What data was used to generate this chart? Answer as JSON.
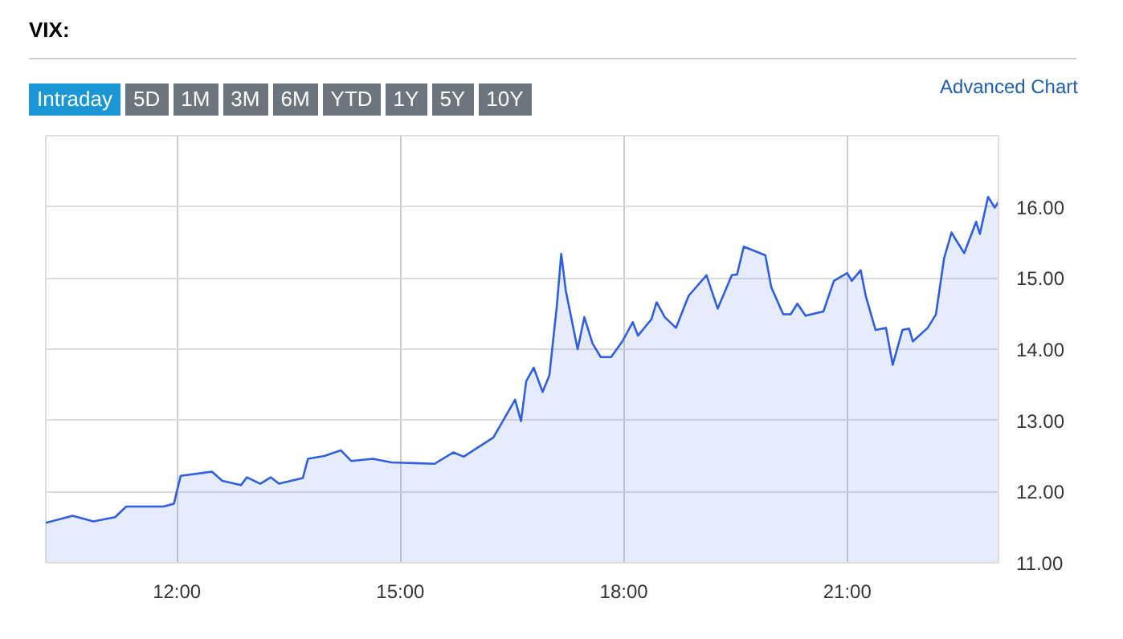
{
  "chart_data": {
    "type": "area",
    "title": "VIX:",
    "annotations": [
      "Intraday",
      "5D",
      "1M",
      "3M",
      "6M",
      "YTD",
      "1Y",
      "5Y",
      "10Y",
      "Advanced Chart"
    ],
    "series": [
      {
        "color": "#2f5fe0",
        "x": [
          10.24,
          10.6,
          10.88,
          11.17,
          11.32,
          11.82,
          11.96,
          12.05,
          12.47,
          12.61,
          12.86,
          12.94,
          13.12,
          13.26,
          13.37,
          13.69,
          13.76,
          13.98,
          14.2,
          14.34,
          14.63,
          14.88,
          15.46,
          15.71,
          15.85,
          16.25,
          16.54,
          16.62,
          16.69,
          16.79,
          16.91,
          17.0,
          17.1,
          17.16,
          17.22,
          17.38,
          17.47,
          17.58,
          17.69,
          17.83,
          17.98,
          18.12,
          18.19,
          18.37,
          18.44,
          18.55,
          18.7,
          18.87,
          19.11,
          19.26,
          19.45,
          19.52,
          19.61,
          19.78,
          19.9,
          19.98,
          20.14,
          20.24,
          20.33,
          20.44,
          20.68,
          20.82,
          21.0,
          21.06,
          21.18,
          21.25,
          21.38,
          21.52,
          21.61,
          21.74,
          21.83,
          21.88,
          22.08,
          22.19,
          22.3,
          22.4,
          22.48,
          22.57,
          22.73,
          22.78,
          22.89,
          22.98,
          23.03
        ],
        "values": [
          11.56,
          11.66,
          11.58,
          11.64,
          11.79,
          11.79,
          11.83,
          12.22,
          12.28,
          12.15,
          12.09,
          12.2,
          12.11,
          12.2,
          12.11,
          12.19,
          12.46,
          12.5,
          12.58,
          12.43,
          12.46,
          12.41,
          12.39,
          12.55,
          12.49,
          12.76,
          13.29,
          12.99,
          13.55,
          13.74,
          13.4,
          13.63,
          14.6,
          15.34,
          14.83,
          14.0,
          14.45,
          14.08,
          13.89,
          13.89,
          14.11,
          14.38,
          14.19,
          14.42,
          14.66,
          14.45,
          14.3,
          14.75,
          15.04,
          14.57,
          15.04,
          15.05,
          15.44,
          15.37,
          15.32,
          14.87,
          14.49,
          14.49,
          14.64,
          14.47,
          14.53,
          14.96,
          15.07,
          14.96,
          15.11,
          14.74,
          14.27,
          14.3,
          13.78,
          14.27,
          14.29,
          14.11,
          14.3,
          14.49,
          15.28,
          15.64,
          15.5,
          15.35,
          15.79,
          15.62,
          16.14,
          15.99,
          16.07
        ]
      }
    ],
    "xlim": [
      10.24,
      23.03
    ],
    "ylim": [
      11,
      17
    ],
    "xticks": [
      {
        "value": 12,
        "label": "12:00"
      },
      {
        "value": 15,
        "label": "15:00"
      },
      {
        "value": 18,
        "label": "18:00"
      },
      {
        "value": 21,
        "label": "21:00"
      }
    ],
    "yticks": [
      {
        "value": 11,
        "label": "11.00"
      },
      {
        "value": 12,
        "label": "12.00"
      },
      {
        "value": 13,
        "label": "13.00"
      },
      {
        "value": 14,
        "label": "14.00"
      },
      {
        "value": 15,
        "label": "15.00"
      },
      {
        "value": 16,
        "label": "16.00"
      }
    ],
    "grid": true
  }
}
